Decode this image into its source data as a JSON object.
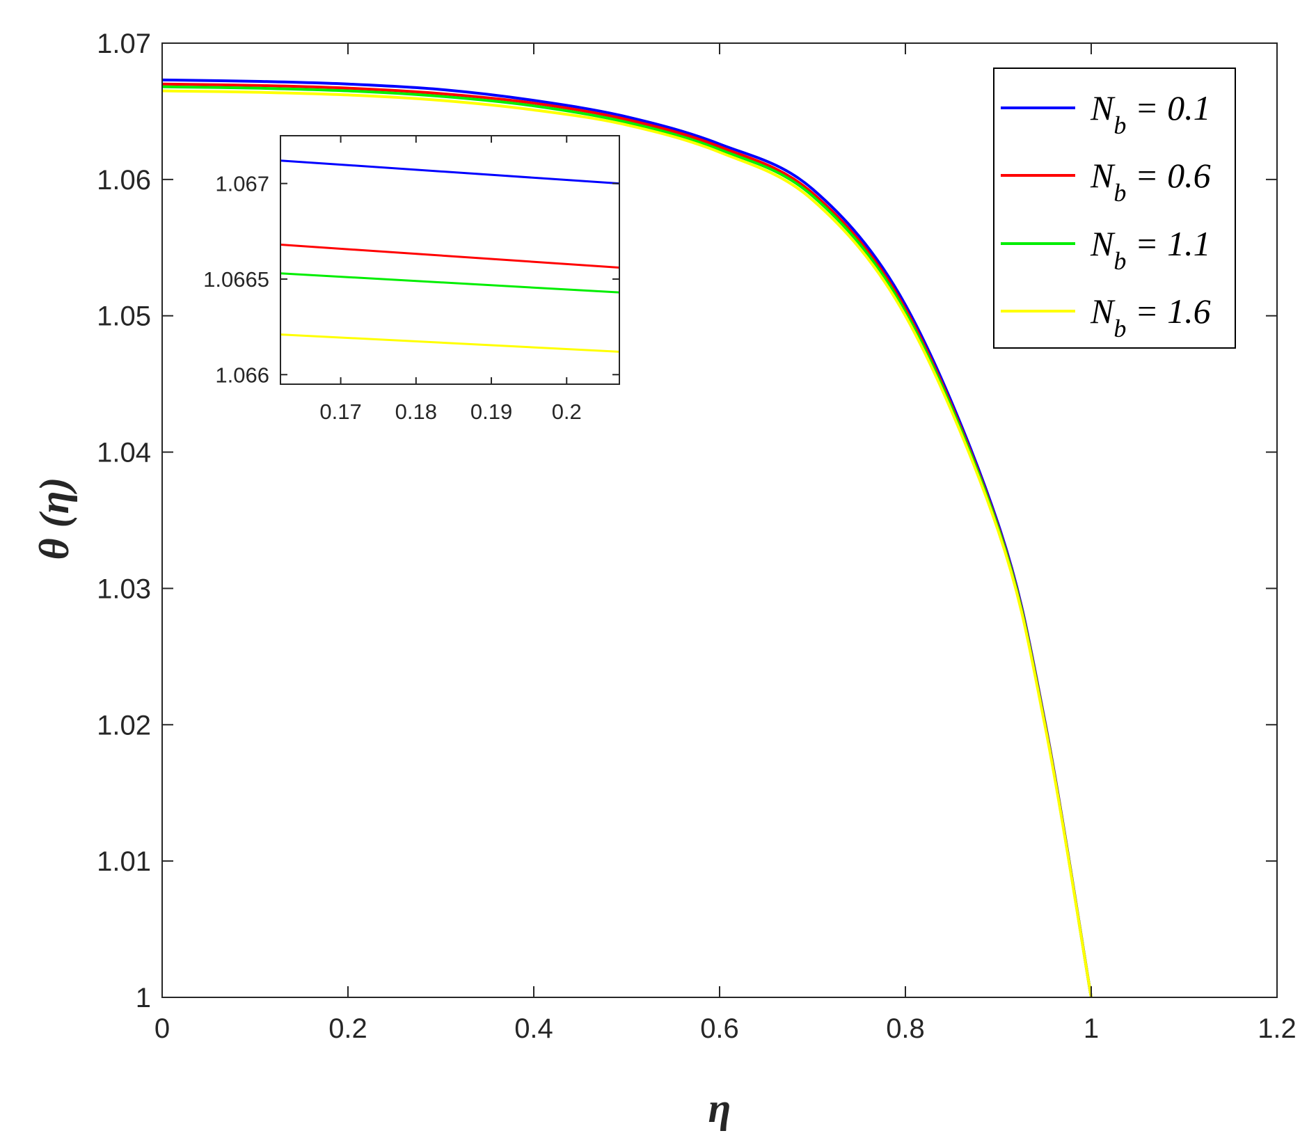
{
  "chart_data": {
    "type": "line",
    "title": "",
    "xlabel": "η",
    "ylabel": "θ (η)",
    "xlim": [
      0,
      1.2
    ],
    "ylim": [
      1,
      1.07
    ],
    "xticks": [
      "0",
      "0.2",
      "0.4",
      "0.6",
      "0.8",
      "1",
      "1.2"
    ],
    "yticks": [
      "1",
      "1.01",
      "1.02",
      "1.03",
      "1.04",
      "1.05",
      "1.06",
      "1.07"
    ],
    "legend_placement": "top-right",
    "grid": false,
    "series": [
      {
        "name": "N_b = 0.1",
        "param": "N",
        "sub": "b",
        "value_text": " = 0.1",
        "color": "#0000ff",
        "x": [
          0,
          0.1,
          0.2,
          0.3,
          0.4,
          0.5,
          0.6,
          0.7,
          0.8,
          0.9,
          0.95,
          1.0
        ],
        "y": [
          1.0673,
          1.0672,
          1.067,
          1.0666,
          1.0658,
          1.0646,
          1.0626,
          1.0593,
          1.0508,
          1.0347,
          1.0203,
          1.0
        ]
      },
      {
        "name": "N_b = 0.6",
        "param": "N",
        "sub": "b",
        "value_text": " = 0.6",
        "color": "#ff0000",
        "x": [
          0,
          0.1,
          0.2,
          0.3,
          0.4,
          0.5,
          0.6,
          0.7,
          0.8,
          0.9,
          0.95,
          1.0
        ],
        "y": [
          1.067,
          1.0669,
          1.0667,
          1.0663,
          1.0656,
          1.0644,
          1.0624,
          1.059,
          1.0505,
          1.0345,
          1.0202,
          1.0
        ]
      },
      {
        "name": "N_b = 1.1",
        "param": "N",
        "sub": "b",
        "value_text": " = 1.1",
        "color": "#00ee00",
        "x": [
          0,
          0.1,
          0.2,
          0.3,
          0.4,
          0.5,
          0.6,
          0.7,
          0.8,
          0.9,
          0.95,
          1.0
        ],
        "y": [
          1.0668,
          1.0667,
          1.0665,
          1.0661,
          1.0654,
          1.0642,
          1.0622,
          1.0588,
          1.0503,
          1.0344,
          1.0201,
          1.0
        ]
      },
      {
        "name": "N_b = 1.6",
        "param": "N",
        "sub": "b",
        "value_text": " = 1.6",
        "color": "#ffff00",
        "x": [
          0,
          0.1,
          0.2,
          0.3,
          0.4,
          0.5,
          0.6,
          0.7,
          0.8,
          0.9,
          0.95,
          1.0
        ],
        "y": [
          1.0665,
          1.0664,
          1.0662,
          1.0658,
          1.0651,
          1.064,
          1.062,
          1.0585,
          1.05,
          1.0342,
          1.02,
          1.0
        ]
      }
    ],
    "inset": {
      "xlim": [
        0.162,
        0.207
      ],
      "ylim": [
        1.06595,
        1.06725
      ],
      "xticks": [
        "0.17",
        "0.18",
        "0.19",
        "0.2"
      ],
      "yticks": [
        "1.066",
        "1.0665",
        "1.067"
      ],
      "series": [
        {
          "color": "#0000ff",
          "x": [
            0.162,
            0.207
          ],
          "y": [
            1.06712,
            1.067
          ]
        },
        {
          "color": "#ff0000",
          "x": [
            0.162,
            0.207
          ],
          "y": [
            1.06668,
            1.06656
          ]
        },
        {
          "color": "#00ee00",
          "x": [
            0.162,
            0.207
          ],
          "y": [
            1.06653,
            1.06643
          ]
        },
        {
          "color": "#ffff00",
          "x": [
            0.162,
            0.207
          ],
          "y": [
            1.06621,
            1.06612
          ]
        }
      ]
    }
  }
}
